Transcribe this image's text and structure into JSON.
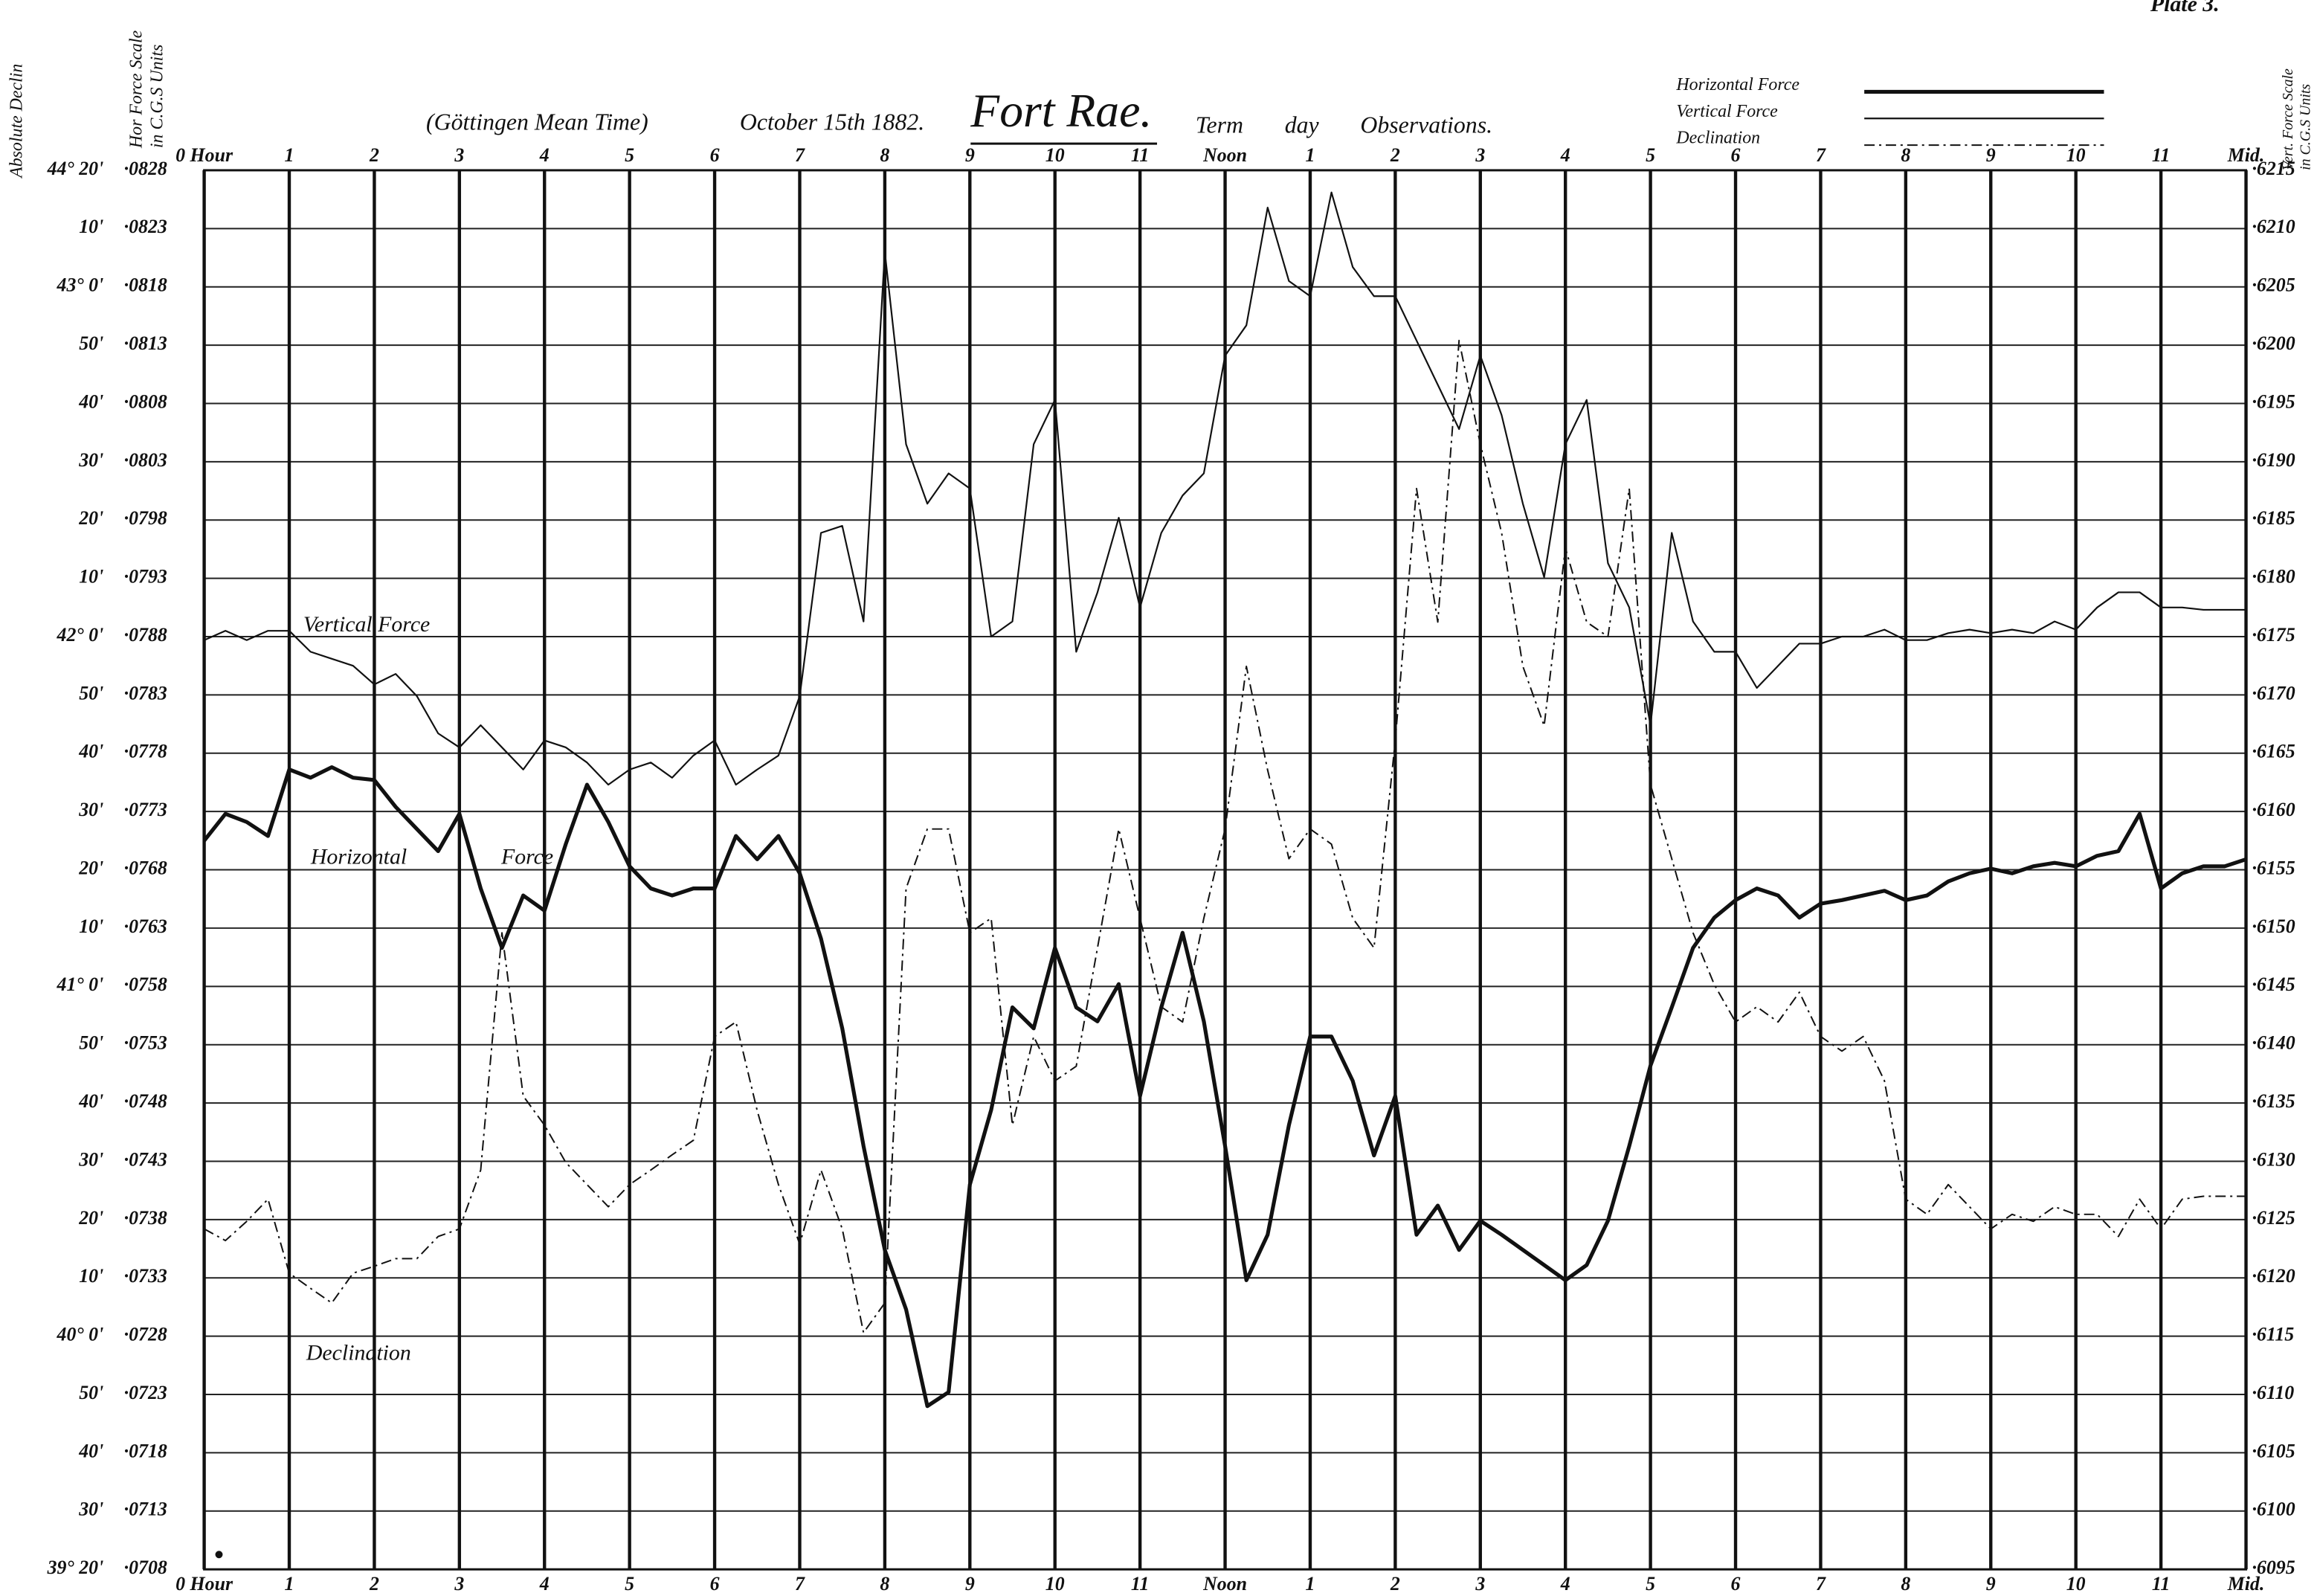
{
  "chart_data": {
    "type": "line",
    "plate": "Plate 3.",
    "subtitle": "(Göttingen Mean Time)",
    "date": "October 15th 1882.",
    "title": "Fort Rae.",
    "annotation": "Term day Observations.",
    "y3_label": "Absolute Declin",
    "y_label": [
      "Hor Force Scale",
      "in C.G.S Units"
    ],
    "y2_label": [
      "Vert. Force Scale",
      "in C.G.S Units"
    ],
    "grid": true,
    "legend": "top-right",
    "xlim": [
      0,
      24
    ],
    "xticks": [
      {
        "value": 0,
        "label": "0 Hour"
      },
      1,
      2,
      3,
      4,
      5,
      6,
      7,
      8,
      9,
      10,
      11,
      {
        "value": 12,
        "label": "Noon"
      },
      {
        "value": 13,
        "label": "1"
      },
      {
        "value": 14,
        "label": "2"
      },
      {
        "value": 15,
        "label": "3"
      },
      {
        "value": 16,
        "label": "4"
      },
      {
        "value": 17,
        "label": "5"
      },
      {
        "value": 18,
        "label": "6"
      },
      {
        "value": 19,
        "label": "7"
      },
      {
        "value": 20,
        "label": "8"
      },
      {
        "value": 21,
        "label": "9"
      },
      {
        "value": 22,
        "label": "10"
      },
      {
        "value": 23,
        "label": "11"
      },
      {
        "value": 24,
        "label": "Mid."
      }
    ],
    "ylim": [
      0.0708,
      0.0828
    ],
    "yticks": [
      {
        "value": 0.0828,
        "label": "·0828"
      },
      {
        "value": 0.0823,
        "label": "·0823"
      },
      {
        "value": 0.0818,
        "label": "·0818"
      },
      {
        "value": 0.0813,
        "label": "·0813"
      },
      {
        "value": 0.0808,
        "label": "·0808"
      },
      {
        "value": 0.0803,
        "label": "·0803"
      },
      {
        "value": 0.0798,
        "label": "·0798"
      },
      {
        "value": 0.0793,
        "label": "·0793"
      },
      {
        "value": 0.0788,
        "label": "·0788"
      },
      {
        "value": 0.0783,
        "label": "·0783"
      },
      {
        "value": 0.0778,
        "label": "·0778"
      },
      {
        "value": 0.0773,
        "label": "·0773"
      },
      {
        "value": 0.0768,
        "label": "·0768"
      },
      {
        "value": 0.0763,
        "label": "·0763"
      },
      {
        "value": 0.0758,
        "label": "·0758"
      },
      {
        "value": 0.0753,
        "label": "·0753"
      },
      {
        "value": 0.0748,
        "label": "·0748"
      },
      {
        "value": 0.0743,
        "label": "·0743"
      },
      {
        "value": 0.0738,
        "label": "·0738"
      },
      {
        "value": 0.0733,
        "label": "·0733"
      },
      {
        "value": 0.0728,
        "label": "·0728"
      },
      {
        "value": 0.0723,
        "label": "·0723"
      },
      {
        "value": 0.0718,
        "label": "·0718"
      },
      {
        "value": 0.0713,
        "label": "·0713"
      },
      {
        "value": 0.0708,
        "label": "·0708"
      }
    ],
    "y2lim": [
      0.6095,
      0.6215
    ],
    "y2ticks": [
      {
        "value": 0.6215,
        "label": "·6215"
      },
      {
        "value": 0.621,
        "label": "·6210"
      },
      {
        "value": 0.6205,
        "label": "·6205"
      },
      {
        "value": 0.62,
        "label": "·6200"
      },
      {
        "value": 0.6195,
        "label": "·6195"
      },
      {
        "value": 0.619,
        "label": "·6190"
      },
      {
        "value": 0.6185,
        "label": "·6185"
      },
      {
        "value": 0.618,
        "label": "·6180"
      },
      {
        "value": 0.6175,
        "label": "·6175"
      },
      {
        "value": 0.617,
        "label": "·6170"
      },
      {
        "value": 0.6165,
        "label": "·6165"
      },
      {
        "value": 0.616,
        "label": "·6160"
      },
      {
        "value": 0.6155,
        "label": "·6155"
      },
      {
        "value": 0.615,
        "label": "·6150"
      },
      {
        "value": 0.6145,
        "label": "·6145"
      },
      {
        "value": 0.614,
        "label": "·6140"
      },
      {
        "value": 0.6135,
        "label": "·6135"
      },
      {
        "value": 0.613,
        "label": "·6130"
      },
      {
        "value": 0.6125,
        "label": "·6125"
      },
      {
        "value": 0.612,
        "label": "·6120"
      },
      {
        "value": 0.6115,
        "label": "·6115"
      },
      {
        "value": 0.611,
        "label": "·6110"
      },
      {
        "value": 0.6105,
        "label": "·6105"
      },
      {
        "value": 0.61,
        "label": "·6100"
      },
      {
        "value": 0.6095,
        "label": "·6095"
      }
    ],
    "y3lim": [
      2360,
      2600
    ],
    "y3ticks": [
      {
        "value": 2600,
        "label": "44° 20'"
      },
      {
        "value": 2590,
        "label": "10'"
      },
      {
        "value": 2580,
        "label": "43° 0'"
      },
      {
        "value": 2570,
        "label": "50'"
      },
      {
        "value": 2560,
        "label": "40'"
      },
      {
        "value": 2550,
        "label": "30'"
      },
      {
        "value": 2540,
        "label": "20'"
      },
      {
        "value": 2530,
        "label": "10'"
      },
      {
        "value": 2520,
        "label": "42° 0'"
      },
      {
        "value": 2510,
        "label": "50'"
      },
      {
        "value": 2500,
        "label": "40'"
      },
      {
        "value": 2490,
        "label": "30'"
      },
      {
        "value": 2480,
        "label": "20'"
      },
      {
        "value": 2470,
        "label": "10'"
      },
      {
        "value": 2460,
        "label": "41° 0'"
      },
      {
        "value": 2450,
        "label": "50'"
      },
      {
        "value": 2440,
        "label": "40'"
      },
      {
        "value": 2430,
        "label": "30'"
      },
      {
        "value": 2420,
        "label": "20'"
      },
      {
        "value": 2410,
        "label": "10'"
      },
      {
        "value": 2400,
        "label": "40° 0'"
      },
      {
        "value": 2390,
        "label": "50'"
      },
      {
        "value": 2380,
        "label": "40'"
      },
      {
        "value": 2370,
        "label": "30'"
      },
      {
        "value": 2360,
        "label": "39° 20'"
      }
    ],
    "x": [
      0,
      0.25,
      0.5,
      0.75,
      1,
      1.25,
      1.5,
      1.75,
      2,
      2.25,
      2.5,
      2.75,
      3,
      3.25,
      3.5,
      3.75,
      4,
      4.25,
      4.5,
      4.75,
      5,
      5.25,
      5.5,
      5.75,
      6,
      6.25,
      6.5,
      6.75,
      7,
      7.25,
      7.5,
      7.75,
      8,
      8.25,
      8.5,
      8.75,
      9,
      9.25,
      9.5,
      9.75,
      10,
      10.25,
      10.5,
      10.75,
      11,
      11.25,
      11.5,
      11.75,
      12,
      12.25,
      12.5,
      12.75,
      13,
      13.25,
      13.5,
      13.75,
      14,
      14.25,
      14.5,
      14.75,
      15,
      15.25,
      15.5,
      15.75,
      16,
      16.25,
      16.5,
      16.75,
      17,
      17.25,
      17.5,
      17.75,
      18,
      18.25,
      18.5,
      18.75,
      19,
      19.25,
      19.5,
      19.75,
      20,
      20.25,
      20.5,
      20.75,
      21,
      21.25,
      21.5,
      21.75,
      22,
      22.25,
      22.5,
      22.75,
      23,
      23.25,
      23.5,
      23.75,
      24
    ],
    "series": [
      {
        "name": "Horizontal Force",
        "color": "#111111",
        "axis": "y",
        "line_width": 2.6,
        "line_style": "solid",
        "values": [
          0.07705,
          0.07728,
          0.07721,
          0.07709,
          0.07766,
          0.07759,
          0.07768,
          0.07759,
          0.07757,
          0.07734,
          0.07715,
          0.07696,
          0.07728,
          0.07664,
          0.07613,
          0.07658,
          0.07645,
          0.07702,
          0.07753,
          0.07721,
          0.07683,
          0.07664,
          0.07658,
          0.07664,
          0.07664,
          0.07709,
          0.07689,
          0.07709,
          0.07677,
          0.07621,
          0.07544,
          0.07443,
          0.07354,
          0.07303,
          0.0722,
          0.07232,
          0.0741,
          0.07474,
          0.07562,
          0.07544,
          0.07613,
          0.07562,
          0.0755,
          0.07582,
          0.07486,
          0.07562,
          0.07626,
          0.0755,
          0.07443,
          0.07328,
          0.07367,
          0.07461,
          0.07537,
          0.07537,
          0.07499,
          0.07435,
          0.07486,
          0.07367,
          0.07392,
          0.07354,
          0.07379,
          0.07367,
          0.07354,
          0.07341,
          0.07328,
          0.07341,
          0.07379,
          0.07443,
          0.07512,
          0.07562,
          0.07613,
          0.07639,
          0.07654,
          0.07664,
          0.07658,
          0.07639,
          0.07651,
          0.07654,
          0.07658,
          0.07662,
          0.07654,
          0.07658,
          0.0767,
          0.07677,
          0.07681,
          0.07677,
          0.07683,
          0.07686,
          0.07683,
          0.07692,
          0.07696,
          0.07728,
          0.07664,
          0.07677,
          0.07683,
          0.07683,
          0.07689
        ]
      },
      {
        "name": "Vertical Force",
        "color": "#111111",
        "axis": "y2",
        "line_width": 1.1,
        "line_style": "solid",
        "values": [
          0.61747,
          0.61755,
          0.61747,
          0.61755,
          0.61755,
          0.61737,
          0.61731,
          0.61725,
          0.61709,
          0.61718,
          0.61699,
          0.61667,
          0.61655,
          0.61674,
          0.61655,
          0.61636,
          0.61661,
          0.61655,
          0.61642,
          0.61623,
          0.61636,
          0.61642,
          0.61629,
          0.61648,
          0.61661,
          0.61623,
          0.61636,
          0.61648,
          0.61699,
          0.61839,
          0.61845,
          0.61763,
          0.6208,
          0.61915,
          0.61864,
          0.6189,
          0.61877,
          0.6175,
          0.61763,
          0.61915,
          0.61953,
          0.61737,
          0.61788,
          0.61852,
          0.61775,
          0.61839,
          0.61871,
          0.6189,
          0.61991,
          0.62017,
          0.62118,
          0.62055,
          0.62042,
          0.62131,
          0.62067,
          0.62042,
          0.62042,
          0.62004,
          0.61966,
          0.61928,
          0.61991,
          0.6194,
          0.61864,
          0.61801,
          0.61915,
          0.61953,
          0.61813,
          0.61775,
          0.61674,
          0.61839,
          0.61763,
          0.61737,
          0.61737,
          0.61706,
          0.61725,
          0.61744,
          0.61744,
          0.6175,
          0.6175,
          0.61756,
          0.61747,
          0.61747,
          0.61753,
          0.61756,
          0.61753,
          0.61756,
          0.61753,
          0.61763,
          0.61756,
          0.61775,
          0.61788,
          0.61788,
          0.61775,
          0.61775,
          0.61773,
          0.61773,
          0.61773
        ]
      },
      {
        "name": "Declination",
        "color": "#111111",
        "axis": "y3",
        "line_width": 1,
        "line_style": "dash-dot",
        "values": [
          2418.4,
          2416.4,
          2419.7,
          2423.5,
          2410.8,
          2408.2,
          2405.7,
          2410.8,
          2412,
          2413.3,
          2413.3,
          2417.1,
          2418.4,
          2428.5,
          2469.2,
          2441.2,
          2436.2,
          2429.8,
          2426,
          2422.2,
          2426,
          2428.5,
          2431.1,
          2433.6,
          2451.4,
          2453.9,
          2438.7,
          2426,
          2415.8,
          2428.5,
          2418.4,
          2400.6,
          2405.7,
          2476.8,
          2487,
          2487,
          2469.2,
          2471.7,
          2436.2,
          2451.4,
          2443.8,
          2446.3,
          2466.6,
          2487,
          2471.7,
          2456.5,
          2453.9,
          2471.7,
          2487,
          2514.9,
          2497.1,
          2481.9,
          2487,
          2484.4,
          2471.7,
          2466.6,
          2502.2,
          2545.4,
          2522.5,
          2570.8,
          2553,
          2537.8,
          2514.9,
          2504.7,
          2535.2,
          2522.5,
          2520,
          2545.4,
          2494.6,
          2481.9,
          2469.2,
          2460.3,
          2453.9,
          2456.5,
          2453.9,
          2459,
          2451.4,
          2448.9,
          2451.4,
          2443.8,
          2423.5,
          2420.9,
          2426,
          2422.2,
          2418.4,
          2420.9,
          2419.7,
          2422.2,
          2420.9,
          2420.9,
          2417.1,
          2423.5,
          2418.4,
          2423.5,
          2424,
          2424,
          2424
        ]
      }
    ]
  }
}
